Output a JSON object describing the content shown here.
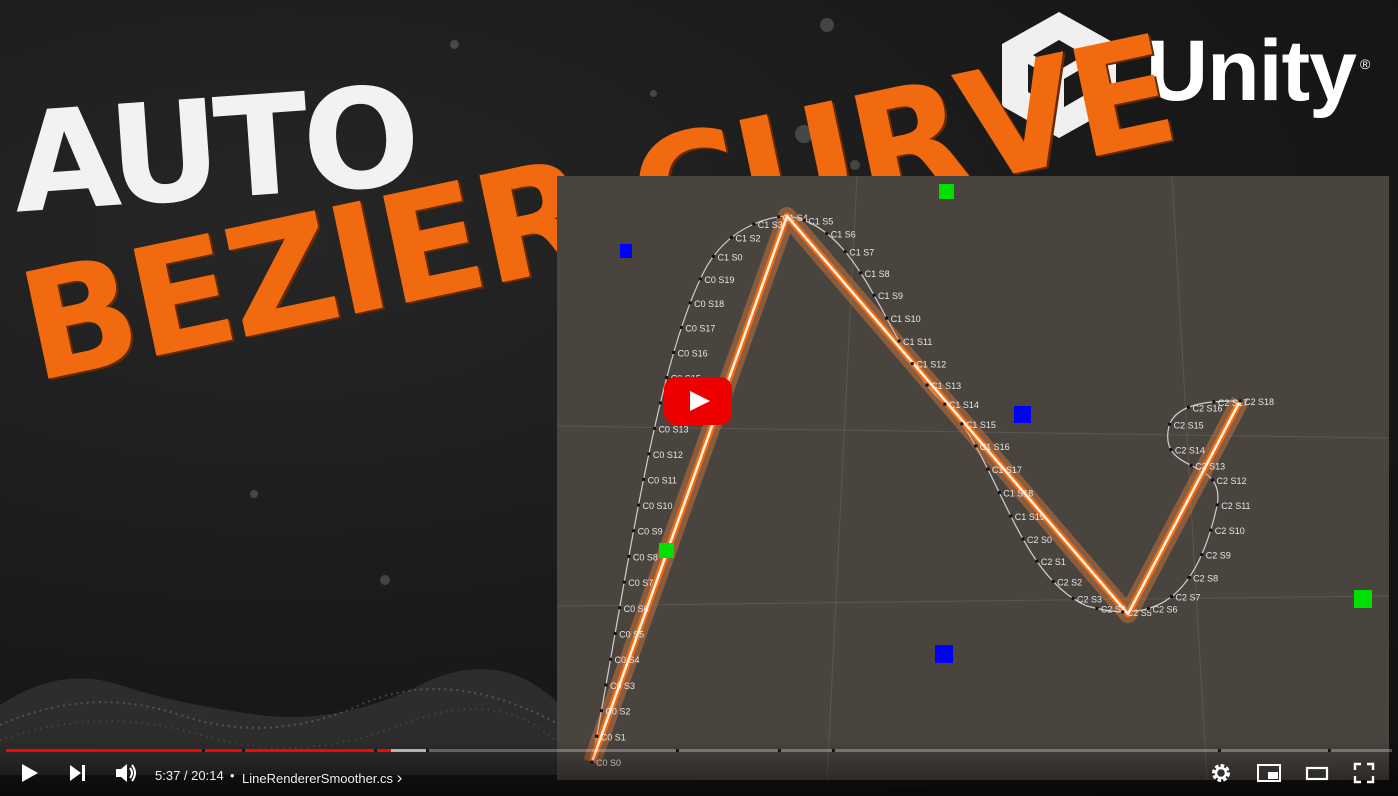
{
  "logo": {
    "text": "Unity",
    "mark": "®"
  },
  "title": {
    "line1": "AUTO",
    "line2": "BEZIER CURVE"
  },
  "curve_labels": [
    "C0 S0",
    "C0 S1",
    "C0 S2",
    "C0 S3",
    "C0 S4",
    "C0 S5",
    "C0 S6",
    "C0 S7",
    "C0 S8",
    "C0 S9",
    "C0 S10",
    "C0 S11",
    "C0 S12",
    "C0 S13",
    "C0 S14",
    "C0 S15",
    "C0 S16",
    "C0 S17",
    "C0 S18",
    "C0 S19",
    "C1 S0",
    "C1 S2",
    "C1 S3",
    "C1 S4",
    "C1 S5",
    "C1 S6",
    "C1 S7",
    "C1 S8",
    "C1 S9",
    "C1 S10",
    "C1 S11",
    "C1 S12",
    "C1 S13",
    "C1 S14",
    "C1 S15",
    "C1 S16",
    "C1 S17",
    "C1 S18",
    "C1 S19",
    "C2 S0",
    "C2 S1",
    "C2 S2",
    "C2 S3",
    "C2 S4",
    "C2 S5",
    "C2 S6",
    "C2 S7",
    "C2 S8",
    "C2 S9",
    "C2 S10",
    "C2 S11",
    "C2 S12",
    "C2 S13",
    "C2 S14",
    "C2 S15",
    "C2 S16",
    "C2 S17",
    "C2 S18"
  ],
  "colors": {
    "accent": "#f26a10",
    "progress_played": "#ff0000",
    "control_point_green": "#00e000",
    "control_point_blue": "#0000ff",
    "youtube_red": "#ee0000"
  },
  "player": {
    "progress_fraction": 0.278,
    "time_current": "5:37",
    "time_separator": " / ",
    "time_total": "20:14",
    "chapter_separator": "•",
    "chapter_title": "LineRendererSmoother.cs",
    "chapter_chevron": "›",
    "icons": {
      "play": "play-icon",
      "next": "next-icon",
      "volume": "volume-icon",
      "settings": "gear-icon",
      "miniplayer": "miniplayer-icon",
      "theater": "theater-mode-icon",
      "fullscreen": "fullscreen-icon",
      "big_play": "youtube-play-icon"
    }
  }
}
